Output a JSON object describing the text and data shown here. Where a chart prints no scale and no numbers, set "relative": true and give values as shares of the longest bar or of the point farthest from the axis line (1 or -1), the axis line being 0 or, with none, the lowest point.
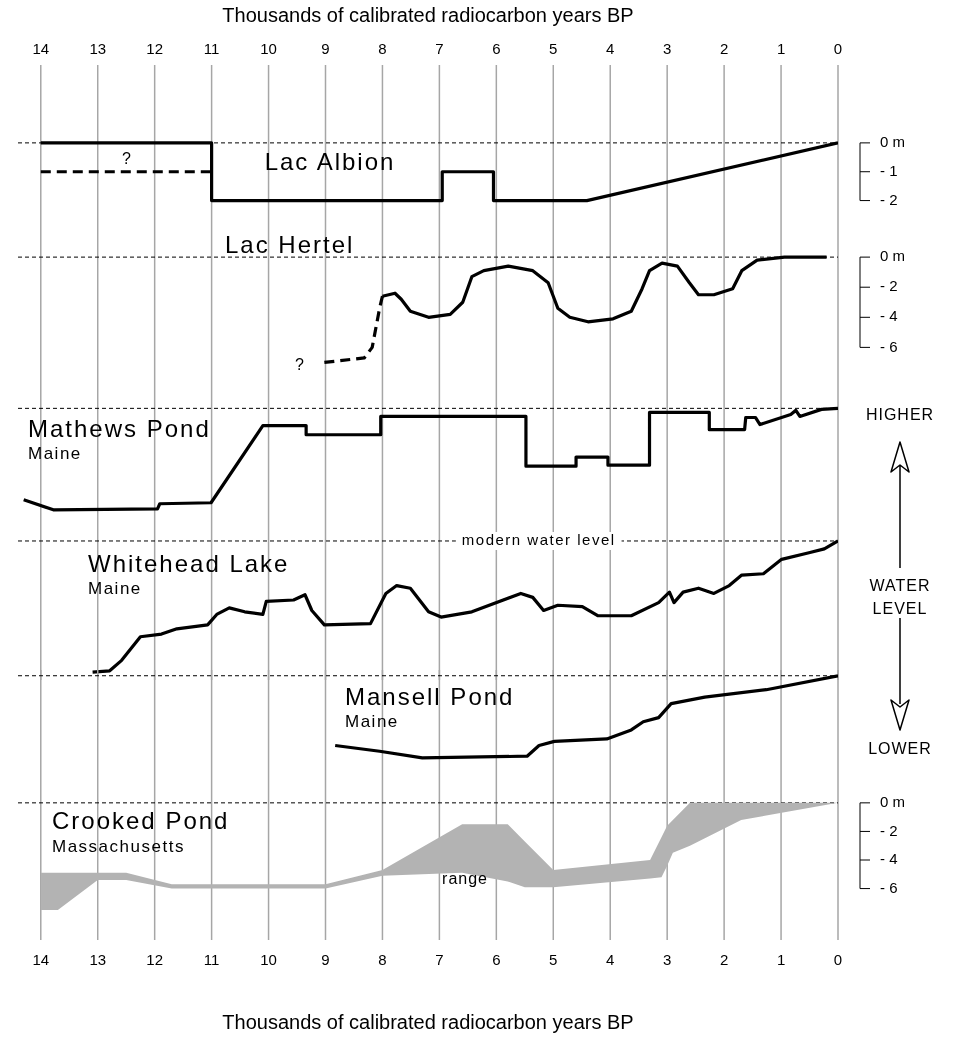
{
  "chart_data": [
    {
      "type": "line",
      "title": "Lac Albion",
      "x2label": "Thousands of calibrated radiocarbon years BP",
      "xlim": [
        14.4,
        0
      ],
      "x2lim": [
        14.4,
        0
      ],
      "x2ticks": [
        14,
        13,
        12,
        11,
        10,
        9,
        8,
        7,
        6,
        5,
        4,
        3,
        2,
        1,
        0
      ],
      "ylim": [
        -2.5,
        2.7
      ],
      "yticks": [
        {
          "value": 0,
          "label": "0 m"
        },
        {
          "value": -1,
          "label": "- 1"
        },
        {
          "value": -2,
          "label": "- 2"
        }
      ],
      "grid": "x",
      "ref_lines": [
        {
          "axis": "y",
          "value": 0,
          "line_style": "dashed"
        }
      ],
      "annotations": [
        "?"
      ],
      "series": [
        {
          "color": "#000000",
          "x": [
            14,
            11,
            11,
            6.95,
            6.95,
            6.05,
            6.05,
            4.41,
            0
          ],
          "values": [
            0,
            0,
            -2,
            -2,
            -1,
            -1,
            -2,
            -2,
            0
          ]
        },
        {
          "color": "#000000",
          "line_style": "dashed",
          "x": [
            14,
            11
          ],
          "values": [
            -1,
            -1
          ]
        }
      ]
    },
    {
      "type": "line",
      "title": "Lac Hertel",
      "xlim": [
        14.4,
        0
      ],
      "xticks": [
        14,
        13,
        12,
        11,
        10,
        9,
        8,
        7,
        6,
        5,
        4,
        3,
        2,
        1,
        0
      ],
      "tick_labels": "y",
      "ylim": [
        -8.5,
        2.8
      ],
      "yticks": [
        {
          "value": 0,
          "label": "0 m"
        },
        {
          "value": -2,
          "label": "- 2"
        },
        {
          "value": -4,
          "label": "- 4"
        },
        {
          "value": -6,
          "label": "- 6"
        }
      ],
      "grid": "x",
      "ref_lines": [
        {
          "axis": "y",
          "value": 0,
          "line_style": "dashed"
        }
      ],
      "annotations": [
        "?"
      ],
      "series": [
        {
          "color": "#000000",
          "line_style": "dashed",
          "x": [
            9.02,
            8.32,
            8.18,
            8.05,
            8.0
          ],
          "values": [
            -7.0,
            -6.7,
            -6.0,
            -3.4,
            -2.6
          ]
        },
        {
          "color": "#000000",
          "x": [
            8.0,
            7.78,
            7.67,
            7.51,
            7.19,
            6.81,
            6.59,
            6.43,
            6.22,
            5.79,
            5.36,
            5.09,
            4.92,
            4.71,
            4.39,
            3.95,
            3.63,
            3.44,
            3.31,
            3.09,
            2.82,
            2.61,
            2.45,
            2.18,
            1.85,
            1.69,
            1.42,
            0.94,
            0.2
          ],
          "values": [
            -2.6,
            -2.4,
            -2.8,
            -3.6,
            -4.0,
            -3.8,
            -3.0,
            -1.3,
            -0.9,
            -0.6,
            -0.9,
            -1.7,
            -3.4,
            -4.0,
            -4.3,
            -4.1,
            -3.6,
            -2.1,
            -0.9,
            -0.4,
            -0.6,
            -1.7,
            -2.5,
            -2.5,
            -2.1,
            -0.9,
            -0.2,
            0,
            0
          ]
        }
      ]
    },
    {
      "type": "line",
      "title": "Mathews Pond",
      "subtitle": "Maine",
      "relative": true,
      "xlim": [
        14.4,
        0
      ],
      "xticks": [
        14,
        13,
        12,
        11,
        10,
        9,
        8,
        7,
        6,
        5,
        4,
        3,
        2,
        1,
        0
      ],
      "tick_labels": false,
      "grid": "x",
      "ref_lines": [
        {
          "axis": "y",
          "value": 1,
          "line_style": "dashed"
        }
      ],
      "annotations": [
        "HIGHER"
      ],
      "series": [
        {
          "color": "#000000",
          "x": [
            14.3,
            13.78,
            11.95,
            11.91,
            11.01,
            10.1,
            9.34,
            9.34,
            8.03,
            8.03,
            5.48,
            5.48,
            4.6,
            4.6,
            4.04,
            4.04,
            3.31,
            3.31,
            2.26,
            2.26,
            1.64,
            1.62,
            1.45,
            1.37,
            0.83,
            0.74,
            0.67,
            0.29,
            0
          ],
          "values": [
            0.1,
            0,
            0.01,
            0.06,
            0.07,
            0.83,
            0.83,
            0.74,
            0.74,
            0.92,
            0.92,
            0.43,
            0.43,
            0.52,
            0.52,
            0.44,
            0.44,
            0.96,
            0.96,
            0.79,
            0.79,
            0.91,
            0.91,
            0.84,
            0.94,
            0.98,
            0.92,
            0.99,
            1
          ]
        }
      ]
    },
    {
      "type": "line",
      "title": "Whitehead Lake",
      "subtitle": "Maine",
      "relative": true,
      "xlim": [
        14.4,
        0
      ],
      "xticks": [
        14,
        13,
        12,
        11,
        10,
        9,
        8,
        7,
        6,
        5,
        4,
        3,
        2,
        1,
        0
      ],
      "tick_labels": false,
      "grid": "x",
      "ref_lines": [
        {
          "axis": "y",
          "value": 1,
          "line_style": "dashed",
          "label": "modern water level"
        }
      ],
      "annotations": [
        "WATER LEVEL"
      ],
      "series": [
        {
          "color": "#000000",
          "x": [
            13.09,
            12.79,
            12.58,
            12.25,
            11.88,
            11.61,
            11.07,
            10.91,
            10.69,
            10.42,
            10.1,
            10.04,
            9.56,
            9.36,
            9.24,
            9.02,
            8.21,
            7.94,
            7.75,
            7.51,
            7.19,
            6.97,
            6.43,
            5.57,
            5.36,
            5.17,
            4.92,
            4.49,
            4.22,
            3.63,
            3.15,
            2.96,
            2.88,
            2.72,
            2.45,
            2.18,
            1.91,
            1.69,
            1.31,
            0.99,
            0.51,
            0.24,
            0
          ],
          "values": [
            0,
            0.01,
            0.09,
            0.27,
            0.29,
            0.33,
            0.36,
            0.44,
            0.49,
            0.46,
            0.44,
            0.54,
            0.55,
            0.59,
            0.47,
            0.36,
            0.37,
            0.6,
            0.66,
            0.64,
            0.46,
            0.42,
            0.46,
            0.6,
            0.57,
            0.47,
            0.51,
            0.5,
            0.43,
            0.43,
            0.53,
            0.61,
            0.53,
            0.61,
            0.64,
            0.6,
            0.66,
            0.74,
            0.75,
            0.86,
            0.91,
            0.94,
            1
          ]
        }
      ]
    },
    {
      "type": "line",
      "title": "Mansell Pond",
      "subtitle": "Maine",
      "relative": true,
      "xlim": [
        14.4,
        0
      ],
      "xticks": [
        14,
        13,
        12,
        11,
        10,
        9,
        8,
        7,
        6,
        5,
        4,
        3,
        2,
        1,
        0
      ],
      "tick_labels": false,
      "grid": "x",
      "ref_lines": [
        {
          "axis": "y",
          "value": 1,
          "line_style": "dashed"
        }
      ],
      "annotations": [
        "LOWER"
      ],
      "series": [
        {
          "color": "#000000",
          "x": [
            8.83,
            8.05,
            7.3,
            5.46,
            5.25,
            4.98,
            4.06,
            3.63,
            3.42,
            3.15,
            2.93,
            2.34,
            1.26,
            0
          ],
          "values": [
            0.15,
            0.08,
            0,
            0.02,
            0.15,
            0.2,
            0.23,
            0.34,
            0.44,
            0.49,
            0.66,
            0.74,
            0.83,
            1
          ]
        }
      ]
    },
    {
      "type": "area",
      "title": "Crooked Pond",
      "subtitle": "Massachusetts",
      "xlabel": "Thousands of calibrated radiocarbon years BP",
      "xlim": [
        14.4,
        0
      ],
      "xticks": [
        14,
        13,
        12,
        11,
        10,
        9,
        8,
        7,
        6,
        5,
        4,
        3,
        2,
        1,
        0
      ],
      "ylim": [
        -9.6,
        1.6
      ],
      "yticks": [
        {
          "value": 0,
          "label": "0 m"
        },
        {
          "value": -2,
          "label": "- 2"
        },
        {
          "value": -4,
          "label": "- 4"
        },
        {
          "value": -6,
          "label": "- 6"
        }
      ],
      "grid": "x",
      "ref_lines": [
        {
          "axis": "y",
          "value": 0,
          "line_style": "dashed"
        }
      ],
      "annotations": [
        "range"
      ],
      "series": [
        {
          "color": "#b3b3b3",
          "x": [
            14,
            13.7,
            13,
            12.5,
            11.7,
            9,
            8,
            6.6,
            5.8,
            5.5,
            5,
            3.3,
            3.1,
            3.0,
            2.9,
            2.6,
            1.7,
            0
          ],
          "values": [
            null,
            null,
            null,
            null,
            null,
            null,
            null,
            null,
            null,
            null,
            null,
            null,
            null,
            null,
            null,
            null,
            null,
            null
          ],
          "upper": [
            -4.9,
            -4.9,
            -4.9,
            -4.9,
            -5.7,
            -5.7,
            -4.7,
            -1.5,
            -1.5,
            -2.7,
            -4.7,
            -4.0,
            -2.4,
            -1.6,
            -1.2,
            0,
            0,
            0
          ],
          "lower": [
            -7.5,
            -7.5,
            -5.4,
            -5.4,
            -6.0,
            -6.0,
            -5.1,
            -4.9,
            -5.5,
            -5.9,
            -5.9,
            -5.3,
            -5.2,
            -4.4,
            -3.5,
            -3.0,
            -1.2,
            0
          ]
        }
      ]
    }
  ]
}
